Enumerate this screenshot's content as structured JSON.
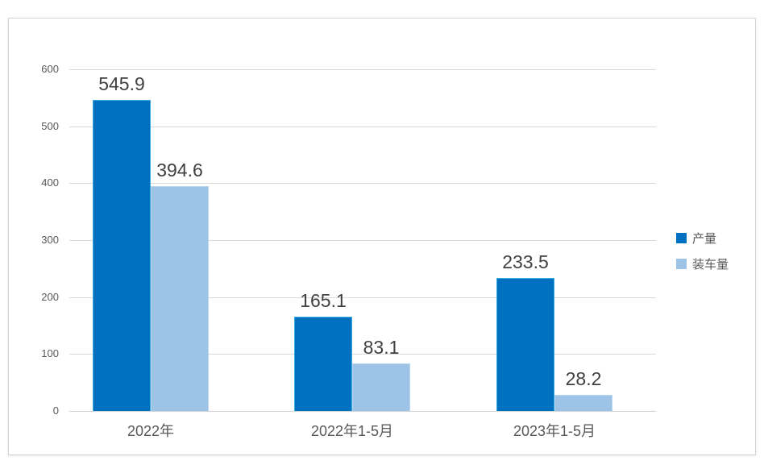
{
  "chart_data": {
    "type": "bar",
    "title": "",
    "xlabel": "",
    "ylabel": "",
    "categories": [
      "2022年",
      "2022年1-5月",
      "2023年1-5月"
    ],
    "series": [
      {
        "name": "产量",
        "color": "#0070C0",
        "border_color": "#38ACE0",
        "values": [
          545.9,
          165.1,
          233.5
        ]
      },
      {
        "name": "装车量",
        "color": "#9DC3E6",
        "border_color": "#BAD6EE",
        "values": [
          394.6,
          83.1,
          28.2
        ]
      }
    ],
    "data_labels_visible": true,
    "yticks": [
      0,
      100,
      200,
      300,
      400,
      500,
      600
    ],
    "ylim": [
      0,
      600
    ],
    "grid": true,
    "legend_position": "right"
  },
  "style": {
    "grid_color": "#D9D9D9",
    "axis_line_color": "#D0D0D0",
    "tick_text_color": "#595959",
    "data_label_color": "#404040",
    "frame_border_color": "#D4D4D4",
    "background": "#FFFFFF"
  }
}
